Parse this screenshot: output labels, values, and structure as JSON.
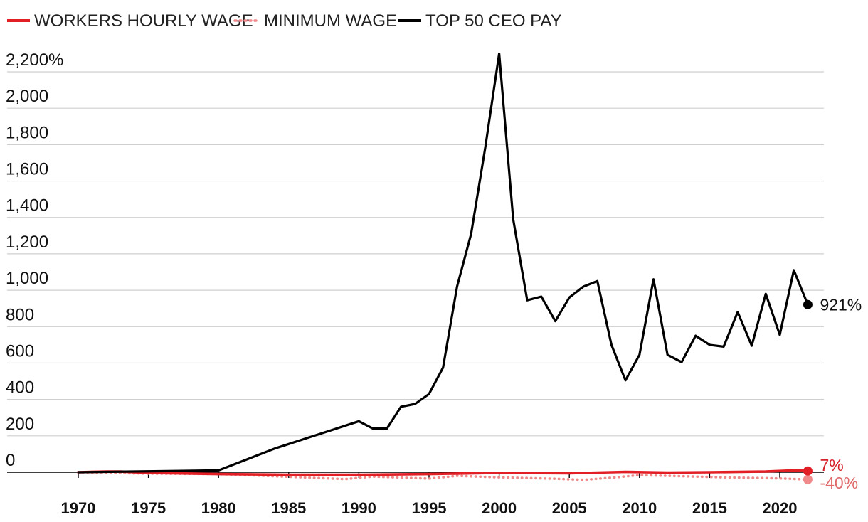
{
  "chart_data": {
    "type": "line",
    "ylabel_unit": "%",
    "ylim": [
      0,
      2200
    ],
    "yticks": [
      0,
      200,
      400,
      600,
      800,
      1000,
      1200,
      1400,
      1600,
      1800,
      2000,
      2200
    ],
    "ytick_labels": [
      "0",
      "200",
      "400",
      "600",
      "800",
      "1,000",
      "1,200",
      "1,400",
      "1,600",
      "1,800",
      "2,000",
      "2,200%"
    ],
    "xticks": [
      1970,
      1975,
      1980,
      1985,
      1990,
      1995,
      2000,
      2005,
      2010,
      2015,
      2020
    ],
    "xtick_labels": [
      "1970",
      "1975",
      "1980",
      "1985",
      "1990",
      "1995",
      "2000",
      "2005",
      "2010",
      "2015",
      "2020"
    ],
    "legend_position": "top-left",
    "grid": true,
    "series": [
      {
        "name": "WORKERS HOURLY WAGE",
        "color": "#e31f26",
        "style": "solid",
        "end_label": "7%",
        "points": [
          [
            1970,
            0
          ],
          [
            1972,
            4
          ],
          [
            1973,
            4
          ],
          [
            1975,
            -4
          ],
          [
            1980,
            -10
          ],
          [
            1985,
            -14
          ],
          [
            1990,
            -14
          ],
          [
            1995,
            -10
          ],
          [
            2000,
            -3
          ],
          [
            2005,
            -6
          ],
          [
            2009,
            2
          ],
          [
            2012,
            -2
          ],
          [
            2015,
            0
          ],
          [
            2019,
            4
          ],
          [
            2021,
            10
          ],
          [
            2022,
            7
          ]
        ]
      },
      {
        "name": "MINIMUM WAGE",
        "color": "#f08a8a",
        "style": "dotted",
        "end_label": "-40%",
        "points": [
          [
            1970,
            0
          ],
          [
            1972,
            -3
          ],
          [
            1975,
            -8
          ],
          [
            1980,
            -10
          ],
          [
            1985,
            -25
          ],
          [
            1989,
            -38
          ],
          [
            1991,
            -24
          ],
          [
            1995,
            -35
          ],
          [
            1997,
            -20
          ],
          [
            2000,
            -28
          ],
          [
            2004,
            -36
          ],
          [
            2006,
            -42
          ],
          [
            2008,
            -30
          ],
          [
            2010,
            -16
          ],
          [
            2013,
            -22
          ],
          [
            2016,
            -28
          ],
          [
            2020,
            -34
          ],
          [
            2022,
            -40
          ]
        ]
      },
      {
        "name": "TOP 50 CEO PAY",
        "color": "#000000",
        "style": "solid",
        "end_label": "921%",
        "points": [
          [
            1970,
            0
          ],
          [
            1980,
            10
          ],
          [
            1981,
            40
          ],
          [
            1982,
            70
          ],
          [
            1983,
            100
          ],
          [
            1984,
            130
          ],
          [
            1985,
            155
          ],
          [
            1986,
            180
          ],
          [
            1987,
            205
          ],
          [
            1988,
            230
          ],
          [
            1989,
            255
          ],
          [
            1990,
            280
          ],
          [
            1991,
            240
          ],
          [
            1992,
            240
          ],
          [
            1993,
            360
          ],
          [
            1994,
            375
          ],
          [
            1995,
            430
          ],
          [
            1996,
            575
          ],
          [
            1997,
            1020
          ],
          [
            1998,
            1310
          ],
          [
            1999,
            1780
          ],
          [
            2000,
            2300
          ],
          [
            2001,
            1390
          ],
          [
            2002,
            945
          ],
          [
            2003,
            965
          ],
          [
            2004,
            830
          ],
          [
            2005,
            960
          ],
          [
            2006,
            1020
          ],
          [
            2007,
            1050
          ],
          [
            2008,
            700
          ],
          [
            2009,
            505
          ],
          [
            2010,
            645
          ],
          [
            2011,
            1060
          ],
          [
            2012,
            645
          ],
          [
            2013,
            605
          ],
          [
            2014,
            750
          ],
          [
            2015,
            700
          ],
          [
            2016,
            690
          ],
          [
            2017,
            880
          ],
          [
            2018,
            695
          ],
          [
            2019,
            980
          ],
          [
            2020,
            755
          ],
          [
            2021,
            1110
          ],
          [
            2022,
            921
          ]
        ]
      }
    ]
  }
}
